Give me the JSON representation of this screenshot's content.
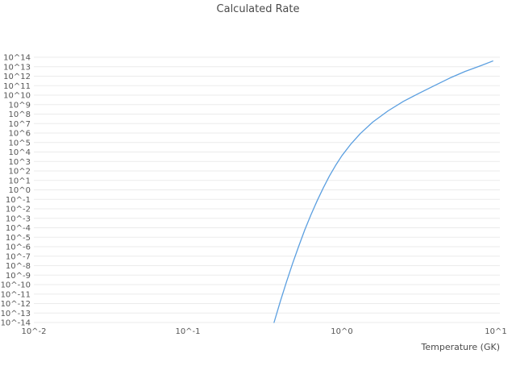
{
  "chart_data": {
    "type": "line",
    "title": "Calculated Rate",
    "xlabel": "Temperature (GK)",
    "ylabel": "",
    "x_scale": "log",
    "y_scale": "log",
    "xlog_range": [
      -2,
      1
    ],
    "ylog_range": [
      -14,
      14
    ],
    "x_ticks": [
      "10^-2",
      "10^-1",
      "10^0",
      "10^1"
    ],
    "y_ticks": [
      "10^14",
      "10^13",
      "10^12",
      "10^11",
      "10^10",
      "10^9",
      "10^8",
      "10^7",
      "10^6",
      "10^5",
      "10^4",
      "10^3",
      "10^2",
      "10^1",
      "10^0",
      "10^-1",
      "10^-2",
      "10^-3",
      "10^-4",
      "10^-5",
      "10^-6",
      "10^-7",
      "10^-8",
      "10^-9",
      "10^-10",
      "10^-11",
      "10^-12",
      "10^-13",
      "10^-14"
    ],
    "grid": true,
    "legend": "none",
    "grid_color": "#ebebeb",
    "line_color": "#5b9fe0",
    "text_color": "#555555",
    "series": [
      {
        "name": "calculated-rate",
        "x": [
          0.363,
          0.398,
          0.437,
          0.479,
          0.525,
          0.575,
          0.631,
          0.692,
          0.759,
          0.832,
          0.912,
          1.0,
          1.148,
          1.318,
          1.585,
          1.995,
          2.512,
          3.162,
          3.981,
          5.012,
          6.31,
          7.943,
          9.55
        ],
        "y": [
          1e-14,
          1.6e-12,
          1.9e-10,
          1.7e-08,
          1.2e-06,
          6.3e-05,
          0.0025,
          0.076,
          1.7,
          30,
          400,
          4000.0,
          72000.0,
          870000.0,
          14000000.0,
          220000000.0,
          2200000000.0,
          15500000000.0,
          100000000000.0,
          630000000000.0,
          3200000000000.0,
          12600000000000.0,
          40000000000000.0
        ]
      }
    ]
  }
}
